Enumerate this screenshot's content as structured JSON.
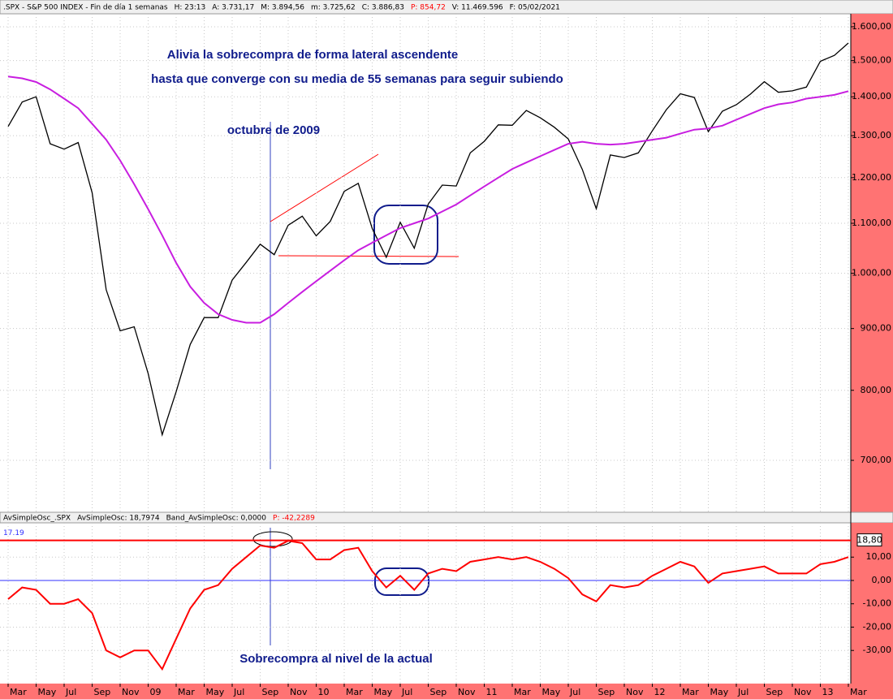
{
  "chart_data": [
    {
      "type": "line",
      "header": [
        {
          "text": ".SPX - S&P 500 INDEX - Fin de día 1 semanas",
          "color": "#000000"
        },
        {
          "text": "H: 23:13",
          "color": "#000000"
        },
        {
          "text": "A: 3.731,17",
          "color": "#000000"
        },
        {
          "text": "M: 3.894,56",
          "color": "#000000"
        },
        {
          "text": "m: 3.725,62",
          "color": "#000000"
        },
        {
          "text": "C: 3.886,83",
          "color": "#000000"
        },
        {
          "text": "P: 854,72",
          "color": "#ff0000"
        },
        {
          "text": "V: 11.469.596",
          "color": "#000000"
        },
        {
          "text": "F: 05/02/2021",
          "color": "#000000"
        }
      ],
      "annotations": [
        "Alivia la sobrecompra de forma lateral ascendente",
        "hasta que converge con su media de 55 semanas para seguir subiendo",
        "octubre de 2009",
        "Sobrecompra al nivel de la actual"
      ],
      "categories": [
        "Mar",
        null,
        "May",
        null,
        "Jul",
        null,
        "Sep",
        null,
        "Nov",
        null,
        "09",
        null,
        "Mar",
        null,
        "May",
        null,
        "Jul",
        null,
        "Sep",
        null,
        "Nov",
        null,
        "10",
        null,
        "Mar",
        null,
        "May",
        null,
        "Jul",
        null,
        "Sep",
        null,
        "Nov",
        null,
        "11",
        null,
        "Mar",
        null,
        "May",
        null,
        "Jul",
        null,
        "Sep",
        null,
        "Nov",
        null,
        "12",
        null,
        "Mar",
        null,
        "May",
        null,
        "Jul",
        null,
        "Sep",
        null,
        "Nov",
        null,
        "13",
        null,
        "Mar"
      ],
      "series": [
        {
          "name": "SPX",
          "color": "#000000",
          "values": [
            1323,
            1386,
            1400,
            1280,
            1267,
            1283,
            1166,
            969,
            896,
            903,
            826,
            735,
            798,
            873,
            919,
            919,
            987,
            1021,
            1057,
            1036,
            1096,
            1115,
            1074,
            1104,
            1169,
            1187,
            1089,
            1031,
            1102,
            1049,
            1141,
            1183,
            1181,
            1258,
            1286,
            1327,
            1326,
            1364,
            1345,
            1321,
            1292,
            1219,
            1131,
            1253,
            1247,
            1258,
            1312,
            1366,
            1408,
            1398,
            1310,
            1362,
            1379,
            1407,
            1441,
            1412,
            1416,
            1426,
            1498,
            1515,
            1551
          ]
        },
        {
          "name": "MA55",
          "color": "#c81ee0",
          "values": [
            1455,
            1450,
            1440,
            1420,
            1395,
            1370,
            1330,
            1290,
            1240,
            1185,
            1130,
            1075,
            1020,
            975,
            945,
            925,
            915,
            910,
            910,
            925,
            945,
            965,
            985,
            1005,
            1025,
            1045,
            1060,
            1075,
            1090,
            1100,
            1110,
            1125,
            1140,
            1160,
            1180,
            1200,
            1220,
            1235,
            1250,
            1265,
            1280,
            1285,
            1280,
            1278,
            1280,
            1285,
            1290,
            1295,
            1305,
            1315,
            1318,
            1325,
            1340,
            1355,
            1370,
            1380,
            1385,
            1395,
            1400,
            1405,
            1415
          ]
        }
      ],
      "log": true,
      "grid": true,
      "ylim": [
        634,
        1640
      ],
      "yticks": [
        {
          "value": 700,
          "label": "700,00"
        },
        {
          "value": 800,
          "label": "800,00"
        },
        {
          "value": 900,
          "label": "900,00"
        },
        {
          "value": 1000,
          "label": "1.000,00"
        },
        {
          "value": 1100,
          "label": "1.100,00"
        },
        {
          "value": 1200,
          "label": "1.200,00"
        },
        {
          "value": 1300,
          "label": "1.300,00"
        },
        {
          "value": 1400,
          "label": "1.400,00"
        },
        {
          "value": 1500,
          "label": "1.500,00"
        },
        {
          "value": 1600,
          "label": "1.600,00"
        }
      ]
    },
    {
      "type": "line",
      "header": [
        {
          "text": "AvSimpleOsc_.SPX",
          "color": "#000000"
        },
        {
          "text": "AvSimpleOsc: 18,7974",
          "color": "#000000"
        },
        {
          "text": "Band_AvSimpleOsc: 0,0000",
          "color": "#000000"
        },
        {
          "text": "P: -42,2289",
          "color": "#ff0000"
        }
      ],
      "series": [
        {
          "name": "AvSimpleOsc",
          "color": "#ff0000",
          "values": [
            -8,
            -3,
            -4,
            -10,
            -10,
            -8,
            -14,
            -30,
            -33,
            -30,
            -30,
            -38,
            -25,
            -12,
            -4,
            -2,
            5,
            10,
            15,
            14,
            17,
            16,
            9,
            9,
            13,
            14,
            4,
            -3,
            2,
            -4,
            3,
            5,
            4,
            8,
            9,
            10,
            9,
            10,
            8,
            5,
            1,
            -6,
            -9,
            -2,
            -3,
            -2,
            2,
            5,
            8,
            6,
            -1,
            3,
            4,
            5,
            6,
            3,
            3,
            3,
            7,
            8,
            10
          ]
        }
      ],
      "reference_line": {
        "value": 17.19,
        "label": "17.19",
        "color": "#ff0000"
      },
      "zero_line_color": "#3030ff",
      "current_label": "18,80",
      "grid": true,
      "ylim": [
        -44.2,
        24.7
      ],
      "yticks": [
        {
          "value": -30,
          "label": "-30,00"
        },
        {
          "value": -20,
          "label": "-20,00"
        },
        {
          "value": -10,
          "label": "-10,00"
        },
        {
          "value": 0,
          "label": "0,00"
        },
        {
          "value": 10,
          "label": "10,00"
        }
      ]
    }
  ]
}
